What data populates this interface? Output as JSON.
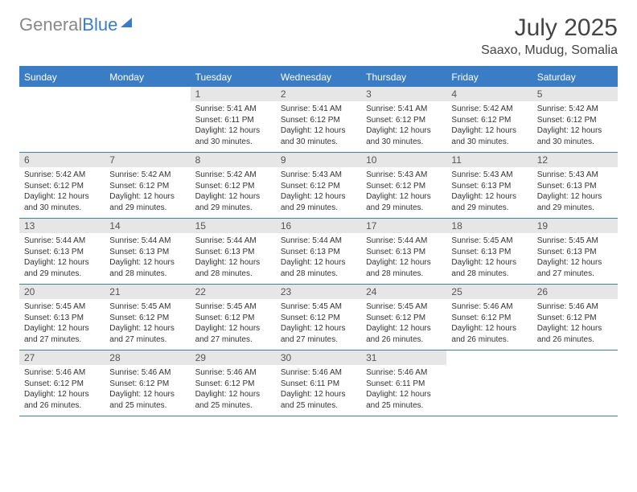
{
  "colors": {
    "header_bg": "#3b7dc4",
    "header_text": "#ffffff",
    "daynum_bg": "#e6e6e6",
    "daynum_text": "#555555",
    "body_text": "#333333",
    "logo_gray": "#888888",
    "logo_blue": "#3b7dc4",
    "border": "#3b7dc4"
  },
  "logo": {
    "part1": "General",
    "part2": "Blue"
  },
  "title": {
    "month": "July 2025",
    "location": "Saaxo, Mudug, Somalia"
  },
  "day_headers": [
    "Sunday",
    "Monday",
    "Tuesday",
    "Wednesday",
    "Thursday",
    "Friday",
    "Saturday"
  ],
  "weeks": [
    [
      {
        "empty": true
      },
      {
        "empty": true
      },
      {
        "num": "1",
        "sunrise": "5:41 AM",
        "sunset": "6:11 PM",
        "daylight": "12 hours and 30 minutes."
      },
      {
        "num": "2",
        "sunrise": "5:41 AM",
        "sunset": "6:12 PM",
        "daylight": "12 hours and 30 minutes."
      },
      {
        "num": "3",
        "sunrise": "5:41 AM",
        "sunset": "6:12 PM",
        "daylight": "12 hours and 30 minutes."
      },
      {
        "num": "4",
        "sunrise": "5:42 AM",
        "sunset": "6:12 PM",
        "daylight": "12 hours and 30 minutes."
      },
      {
        "num": "5",
        "sunrise": "5:42 AM",
        "sunset": "6:12 PM",
        "daylight": "12 hours and 30 minutes."
      }
    ],
    [
      {
        "num": "6",
        "sunrise": "5:42 AM",
        "sunset": "6:12 PM",
        "daylight": "12 hours and 30 minutes."
      },
      {
        "num": "7",
        "sunrise": "5:42 AM",
        "sunset": "6:12 PM",
        "daylight": "12 hours and 29 minutes."
      },
      {
        "num": "8",
        "sunrise": "5:42 AM",
        "sunset": "6:12 PM",
        "daylight": "12 hours and 29 minutes."
      },
      {
        "num": "9",
        "sunrise": "5:43 AM",
        "sunset": "6:12 PM",
        "daylight": "12 hours and 29 minutes."
      },
      {
        "num": "10",
        "sunrise": "5:43 AM",
        "sunset": "6:12 PM",
        "daylight": "12 hours and 29 minutes."
      },
      {
        "num": "11",
        "sunrise": "5:43 AM",
        "sunset": "6:13 PM",
        "daylight": "12 hours and 29 minutes."
      },
      {
        "num": "12",
        "sunrise": "5:43 AM",
        "sunset": "6:13 PM",
        "daylight": "12 hours and 29 minutes."
      }
    ],
    [
      {
        "num": "13",
        "sunrise": "5:44 AM",
        "sunset": "6:13 PM",
        "daylight": "12 hours and 29 minutes."
      },
      {
        "num": "14",
        "sunrise": "5:44 AM",
        "sunset": "6:13 PM",
        "daylight": "12 hours and 28 minutes."
      },
      {
        "num": "15",
        "sunrise": "5:44 AM",
        "sunset": "6:13 PM",
        "daylight": "12 hours and 28 minutes."
      },
      {
        "num": "16",
        "sunrise": "5:44 AM",
        "sunset": "6:13 PM",
        "daylight": "12 hours and 28 minutes."
      },
      {
        "num": "17",
        "sunrise": "5:44 AM",
        "sunset": "6:13 PM",
        "daylight": "12 hours and 28 minutes."
      },
      {
        "num": "18",
        "sunrise": "5:45 AM",
        "sunset": "6:13 PM",
        "daylight": "12 hours and 28 minutes."
      },
      {
        "num": "19",
        "sunrise": "5:45 AM",
        "sunset": "6:13 PM",
        "daylight": "12 hours and 27 minutes."
      }
    ],
    [
      {
        "num": "20",
        "sunrise": "5:45 AM",
        "sunset": "6:13 PM",
        "daylight": "12 hours and 27 minutes."
      },
      {
        "num": "21",
        "sunrise": "5:45 AM",
        "sunset": "6:12 PM",
        "daylight": "12 hours and 27 minutes."
      },
      {
        "num": "22",
        "sunrise": "5:45 AM",
        "sunset": "6:12 PM",
        "daylight": "12 hours and 27 minutes."
      },
      {
        "num": "23",
        "sunrise": "5:45 AM",
        "sunset": "6:12 PM",
        "daylight": "12 hours and 27 minutes."
      },
      {
        "num": "24",
        "sunrise": "5:45 AM",
        "sunset": "6:12 PM",
        "daylight": "12 hours and 26 minutes."
      },
      {
        "num": "25",
        "sunrise": "5:46 AM",
        "sunset": "6:12 PM",
        "daylight": "12 hours and 26 minutes."
      },
      {
        "num": "26",
        "sunrise": "5:46 AM",
        "sunset": "6:12 PM",
        "daylight": "12 hours and 26 minutes."
      }
    ],
    [
      {
        "num": "27",
        "sunrise": "5:46 AM",
        "sunset": "6:12 PM",
        "daylight": "12 hours and 26 minutes."
      },
      {
        "num": "28",
        "sunrise": "5:46 AM",
        "sunset": "6:12 PM",
        "daylight": "12 hours and 25 minutes."
      },
      {
        "num": "29",
        "sunrise": "5:46 AM",
        "sunset": "6:12 PM",
        "daylight": "12 hours and 25 minutes."
      },
      {
        "num": "30",
        "sunrise": "5:46 AM",
        "sunset": "6:11 PM",
        "daylight": "12 hours and 25 minutes."
      },
      {
        "num": "31",
        "sunrise": "5:46 AM",
        "sunset": "6:11 PM",
        "daylight": "12 hours and 25 minutes."
      },
      {
        "empty": true
      },
      {
        "empty": true
      }
    ]
  ],
  "labels": {
    "sunrise": "Sunrise:",
    "sunset": "Sunset:",
    "daylight": "Daylight:"
  }
}
